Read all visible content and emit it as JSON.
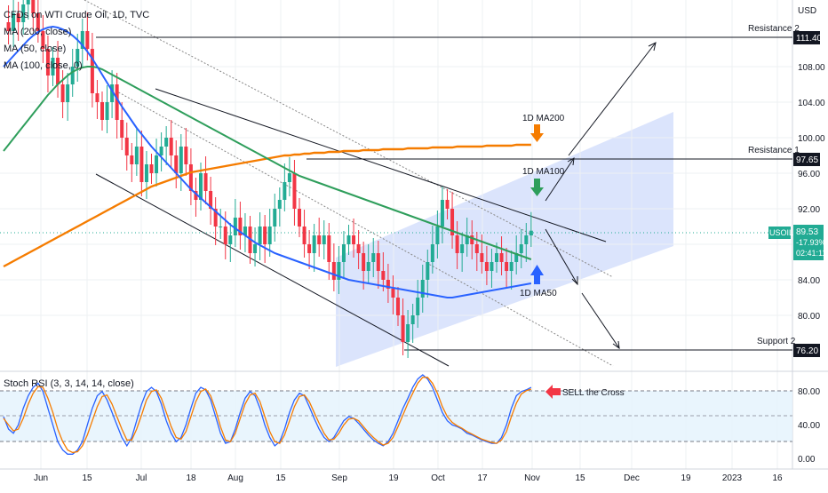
{
  "legend": {
    "title": "CFDs on WTI Crude Oil, 1D, TVC",
    "ma1": "MA (200, close)",
    "ma2": "MA (50, close)",
    "ma3": "MA (100, close, 0)"
  },
  "price_axis": {
    "currency": "USD",
    "ticks": [
      "108.00",
      "104.00",
      "100.00",
      "96.00",
      "92.00",
      "88.00",
      "84.00",
      "80.00"
    ]
  },
  "badges": {
    "resistance2": "111.40",
    "resistance1": "97.65",
    "support2": "76.20",
    "symbol": "USOIL",
    "price": "89.53",
    "change": "-17.93%",
    "timer": "02:41:11"
  },
  "annotations": {
    "resistance2": "Resistance 2",
    "resistance1": "Resistance 1",
    "support2": "Support 2",
    "ma200": "1D MA200",
    "ma100": "1D MA100",
    "ma50": "1D MA50",
    "sell": "SELL the Cross"
  },
  "stoch": {
    "title": "Stoch RSI (3, 3, 14, 14, close)",
    "ticks": [
      "80.00",
      "40.00",
      "0.00"
    ]
  },
  "time_axis": [
    "Jun",
    "15",
    "Jul",
    "18",
    "Aug",
    "15",
    "Sep",
    "19",
    "Oct",
    "17",
    "Nov",
    "15",
    "Dec",
    "19",
    "2023",
    "16"
  ],
  "colors": {
    "up": "#22ab94",
    "down": "#f23645",
    "ma200": "#f57c00",
    "ma100": "#2e9e5b",
    "ma50": "#2962ff",
    "channel": "#c8d6fb",
    "stoch_k": "#2962ff",
    "stoch_d": "#f57c00",
    "stoch_band": "#e3f2fd"
  },
  "chart_data": {
    "type": "candlestick",
    "ylim": [
      73.5,
      115
    ],
    "closes": [
      113,
      112,
      114,
      113,
      115,
      116,
      114,
      112,
      110,
      107,
      109,
      106,
      104,
      106,
      108,
      110,
      112,
      110,
      105,
      104,
      102,
      104,
      106,
      102,
      100,
      98,
      97,
      99,
      95,
      97,
      96,
      98,
      99,
      100,
      98,
      96,
      99,
      97,
      94,
      93,
      96,
      94,
      92,
      90,
      90,
      88,
      89,
      91,
      89,
      90,
      87,
      88,
      90,
      88,
      90,
      92,
      93,
      95,
      96,
      92,
      90,
      88,
      87,
      89,
      88,
      89,
      86,
      84,
      86,
      88,
      89,
      88,
      87,
      85,
      86,
      87,
      85,
      84,
      83,
      82,
      80,
      77,
      79,
      80,
      82,
      84,
      86,
      88,
      90,
      93,
      92,
      89,
      87,
      88,
      89,
      88,
      87,
      86,
      85,
      86,
      87,
      86,
      85,
      86,
      87,
      88,
      89,
      89.53
    ],
    "ma200": [
      85.5,
      85.8,
      86.1,
      86.4,
      86.7,
      87.0,
      87.3,
      87.6,
      87.9,
      88.2,
      88.5,
      88.8,
      89.1,
      89.4,
      89.7,
      90.0,
      90.3,
      90.6,
      90.9,
      91.2,
      91.5,
      91.8,
      92.1,
      92.4,
      92.7,
      93.0,
      93.3,
      93.6,
      93.9,
      94.2,
      94.5,
      94.7,
      94.9,
      95.1,
      95.3,
      95.5,
      95.7,
      95.9,
      96.1,
      96.2,
      96.3,
      96.4,
      96.5,
      96.6,
      96.7,
      96.8,
      96.9,
      97.0,
      97.1,
      97.2,
      97.3,
      97.4,
      97.5,
      97.6,
      97.7,
      97.8,
      97.9,
      98.0,
      98.0,
      98.1,
      98.1,
      98.2,
      98.2,
      98.3,
      98.3,
      98.3,
      98.4,
      98.4,
      98.4,
      98.5,
      98.5,
      98.5,
      98.5,
      98.6,
      98.6,
      98.6,
      98.6,
      98.7,
      98.7,
      98.7,
      98.7,
      98.7,
      98.8,
      98.8,
      98.8,
      98.8,
      98.8,
      98.9,
      98.9,
      98.9,
      98.9,
      98.9,
      99.0,
      99.0,
      99.0,
      99.0,
      99.0,
      99.0,
      99.1,
      99.1,
      99.1,
      99.1,
      99.1,
      99.1,
      99.2,
      99.2,
      99.2,
      99.2
    ],
    "ma100": [
      98.5,
      99.2,
      99.9,
      100.6,
      101.3,
      102.0,
      102.7,
      103.4,
      104.1,
      104.8,
      105.4,
      106.0,
      106.5,
      107.0,
      107.4,
      107.7,
      107.9,
      108.0,
      108.0,
      107.9,
      107.7,
      107.4,
      107.1,
      106.8,
      106.5,
      106.2,
      105.9,
      105.6,
      105.3,
      105.0,
      104.7,
      104.4,
      104.1,
      103.8,
      103.5,
      103.2,
      102.9,
      102.6,
      102.3,
      102.0,
      101.7,
      101.4,
      101.1,
      100.8,
      100.5,
      100.2,
      99.9,
      99.6,
      99.3,
      99.0,
      98.7,
      98.4,
      98.1,
      97.8,
      97.5,
      97.2,
      96.9,
      96.6,
      96.3,
      96.0,
      95.7,
      95.5,
      95.3,
      95.1,
      94.9,
      94.7,
      94.5,
      94.3,
      94.1,
      93.9,
      93.7,
      93.5,
      93.3,
      93.1,
      92.9,
      92.7,
      92.5,
      92.3,
      92.1,
      91.9,
      91.7,
      91.5,
      91.3,
      91.1,
      90.9,
      90.7,
      90.5,
      90.3,
      90.1,
      89.9,
      89.7,
      89.5,
      89.3,
      89.1,
      88.9,
      88.7,
      88.5,
      88.3,
      88.1,
      87.9,
      87.7,
      87.5,
      87.3,
      87.1,
      86.9,
      86.7,
      86.5,
      86.3
    ],
    "ma50": [
      108.0,
      108.6,
      109.2,
      109.8,
      110.4,
      111.0,
      111.5,
      111.9,
      112.2,
      112.4,
      112.5,
      112.4,
      112.2,
      111.9,
      111.5,
      111.0,
      110.4,
      109.7,
      108.9,
      108.0,
      107.1,
      106.2,
      105.3,
      104.4,
      103.5,
      102.7,
      101.9,
      101.1,
      100.4,
      99.7,
      99.0,
      98.4,
      97.8,
      97.2,
      96.6,
      96.0,
      95.4,
      94.8,
      94.2,
      93.7,
      93.2,
      92.7,
      92.2,
      91.7,
      91.2,
      90.7,
      90.2,
      89.8,
      89.4,
      89.0,
      88.6,
      88.2,
      87.9,
      87.6,
      87.3,
      87.0,
      86.8,
      86.6,
      86.4,
      86.2,
      86.0,
      85.8,
      85.6,
      85.4,
      85.2,
      85.0,
      84.8,
      84.6,
      84.4,
      84.2,
      84.0,
      83.9,
      83.8,
      83.7,
      83.6,
      83.5,
      83.4,
      83.3,
      83.2,
      83.1,
      83.0,
      82.9,
      82.8,
      82.7,
      82.6,
      82.5,
      82.4,
      82.3,
      82.2,
      82.1,
      82.0,
      82.0,
      82.1,
      82.2,
      82.3,
      82.4,
      82.5,
      82.6,
      82.7,
      82.8,
      82.9,
      83.0,
      83.1,
      83.2,
      83.3,
      83.4,
      83.5,
      83.6
    ],
    "stoch_k": [
      50,
      35,
      30,
      40,
      60,
      75,
      85,
      90,
      80,
      60,
      40,
      20,
      10,
      5,
      5,
      10,
      20,
      40,
      60,
      75,
      80,
      70,
      55,
      40,
      25,
      15,
      25,
      45,
      65,
      80,
      85,
      80,
      65,
      45,
      30,
      20,
      25,
      40,
      60,
      78,
      85,
      82,
      70,
      50,
      30,
      18,
      20,
      35,
      55,
      72,
      80,
      75,
      60,
      40,
      25,
      15,
      20,
      35,
      55,
      70,
      78,
      75,
      62,
      48,
      35,
      25,
      20,
      25,
      35,
      45,
      50,
      48,
      42,
      35,
      28,
      22,
      18,
      15,
      20,
      30,
      45,
      60,
      72,
      85,
      95,
      100,
      95,
      85,
      70,
      55,
      45,
      40,
      38,
      35,
      30,
      28,
      25,
      22,
      20,
      18,
      18,
      25,
      40,
      60,
      75,
      80,
      82,
      85
    ],
    "stoch_d": [
      48,
      40,
      33,
      35,
      48,
      65,
      78,
      86,
      85,
      72,
      55,
      35,
      20,
      10,
      7,
      8,
      15,
      28,
      45,
      62,
      74,
      76,
      65,
      50,
      35,
      22,
      22,
      35,
      52,
      70,
      80,
      82,
      72,
      55,
      38,
      25,
      23,
      32,
      50,
      68,
      80,
      83,
      75,
      58,
      38,
      22,
      20,
      30,
      48,
      65,
      76,
      78,
      68,
      50,
      32,
      20,
      18,
      28,
      45,
      62,
      74,
      76,
      68,
      55,
      42,
      30,
      22,
      23,
      30,
      40,
      47,
      48,
      45,
      38,
      31,
      25,
      20,
      16,
      18,
      25,
      38,
      52,
      66,
      78,
      90,
      97,
      97,
      90,
      78,
      62,
      50,
      43,
      39,
      36,
      32,
      29,
      26,
      23,
      21,
      19,
      18,
      22,
      32,
      50,
      66,
      77,
      81,
      83
    ]
  }
}
